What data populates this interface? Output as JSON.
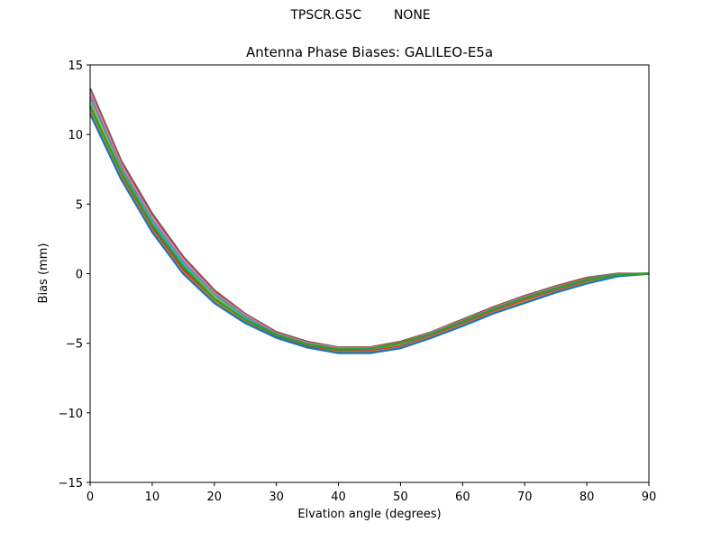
{
  "header": {
    "suptitle_left": "TPSCR.G5C",
    "suptitle_right": "NONE",
    "title": "Antenna Phase Biases: GALILEO-E5a"
  },
  "chart_data": {
    "type": "line",
    "title": "Antenna Phase Biases: GALILEO-E5a",
    "suptitle": "TPSCR.G5C        NONE",
    "xlabel": "Elvation angle (degrees)",
    "ylabel": "Bias (mm)",
    "xlim": [
      0,
      90
    ],
    "ylim": [
      -15,
      15
    ],
    "xticks": [
      0,
      10,
      20,
      30,
      40,
      50,
      60,
      70,
      80,
      90
    ],
    "yticks": [
      15,
      10,
      5,
      0,
      -5,
      -10,
      -15
    ],
    "ytick_labels": [
      "15",
      "10",
      "5",
      "0",
      "−5",
      "−10",
      "−15"
    ],
    "grid": false,
    "legend": null,
    "x": [
      0,
      5,
      10,
      15,
      20,
      25,
      30,
      35,
      40,
      45,
      50,
      55,
      60,
      65,
      70,
      75,
      80,
      85,
      90
    ],
    "series": [
      {
        "name": "s1",
        "color": "#8c564b",
        "values": [
          13.3,
          8.1,
          4.3,
          1.2,
          -1.2,
          -2.9,
          -4.2,
          -4.9,
          -5.3,
          -5.3,
          -4.9,
          -4.2,
          -3.3,
          -2.4,
          -1.6,
          -0.9,
          -0.3,
          0.0,
          0.0
        ]
      },
      {
        "name": "s2",
        "color": "#e377c2",
        "values": [
          13.0,
          7.8,
          4.0,
          1.0,
          -1.4,
          -3.0,
          -4.3,
          -5.0,
          -5.35,
          -5.35,
          -5.0,
          -4.25,
          -3.4,
          -2.5,
          -1.7,
          -1.0,
          -0.4,
          -0.05,
          0.0
        ]
      },
      {
        "name": "s3",
        "color": "#7f7f7f",
        "values": [
          12.7,
          7.6,
          3.8,
          0.8,
          -1.5,
          -3.1,
          -4.35,
          -5.05,
          -5.4,
          -5.4,
          -5.05,
          -4.3,
          -3.45,
          -2.55,
          -1.75,
          -1.05,
          -0.42,
          -0.07,
          0.0
        ]
      },
      {
        "name": "s4",
        "color": "#17becf",
        "values": [
          12.5,
          7.4,
          3.7,
          0.7,
          -1.6,
          -3.2,
          -4.4,
          -5.1,
          -5.45,
          -5.45,
          -5.1,
          -4.35,
          -3.5,
          -2.6,
          -1.8,
          -1.1,
          -0.45,
          -0.08,
          0.0
        ]
      },
      {
        "name": "s5",
        "color": "#bcbd22",
        "values": [
          12.3,
          7.3,
          3.5,
          0.5,
          -1.7,
          -3.3,
          -4.45,
          -5.15,
          -5.5,
          -5.5,
          -5.15,
          -4.4,
          -3.55,
          -2.65,
          -1.85,
          -1.15,
          -0.5,
          -0.1,
          0.0
        ]
      },
      {
        "name": "s6",
        "color": "#9467bd",
        "values": [
          12.1,
          7.1,
          3.4,
          0.4,
          -1.8,
          -3.35,
          -4.5,
          -5.2,
          -5.55,
          -5.55,
          -5.2,
          -4.45,
          -3.6,
          -2.7,
          -1.9,
          -1.2,
          -0.55,
          -0.12,
          0.0
        ]
      },
      {
        "name": "s7",
        "color": "#d62728",
        "values": [
          11.9,
          7.0,
          3.25,
          0.3,
          -1.9,
          -3.4,
          -4.55,
          -5.25,
          -5.6,
          -5.6,
          -5.25,
          -4.5,
          -3.65,
          -2.75,
          -1.95,
          -1.25,
          -0.6,
          -0.14,
          0.0
        ]
      },
      {
        "name": "s8",
        "color": "#ff7f0e",
        "values": [
          11.7,
          6.9,
          3.1,
          0.1,
          -2.0,
          -3.5,
          -4.6,
          -5.3,
          -5.65,
          -5.65,
          -5.3,
          -4.55,
          -3.7,
          -2.8,
          -2.0,
          -1.3,
          -0.65,
          -0.16,
          0.0
        ]
      },
      {
        "name": "s9",
        "color": "#1f77b4",
        "values": [
          11.5,
          6.8,
          3.0,
          0.0,
          -2.1,
          -3.55,
          -4.6,
          -5.3,
          -5.7,
          -5.7,
          -5.35,
          -4.6,
          -3.75,
          -2.85,
          -2.1,
          -1.35,
          -0.7,
          -0.18,
          0.0
        ]
      },
      {
        "name": "s10",
        "color": "#2ca02c",
        "values": [
          12.0,
          7.3,
          3.5,
          0.5,
          -1.8,
          -3.3,
          -4.4,
          -5.1,
          -5.45,
          -5.4,
          -5.0,
          -4.3,
          -3.45,
          -2.55,
          -1.75,
          -1.05,
          -0.45,
          -0.08,
          0.0
        ]
      }
    ]
  }
}
